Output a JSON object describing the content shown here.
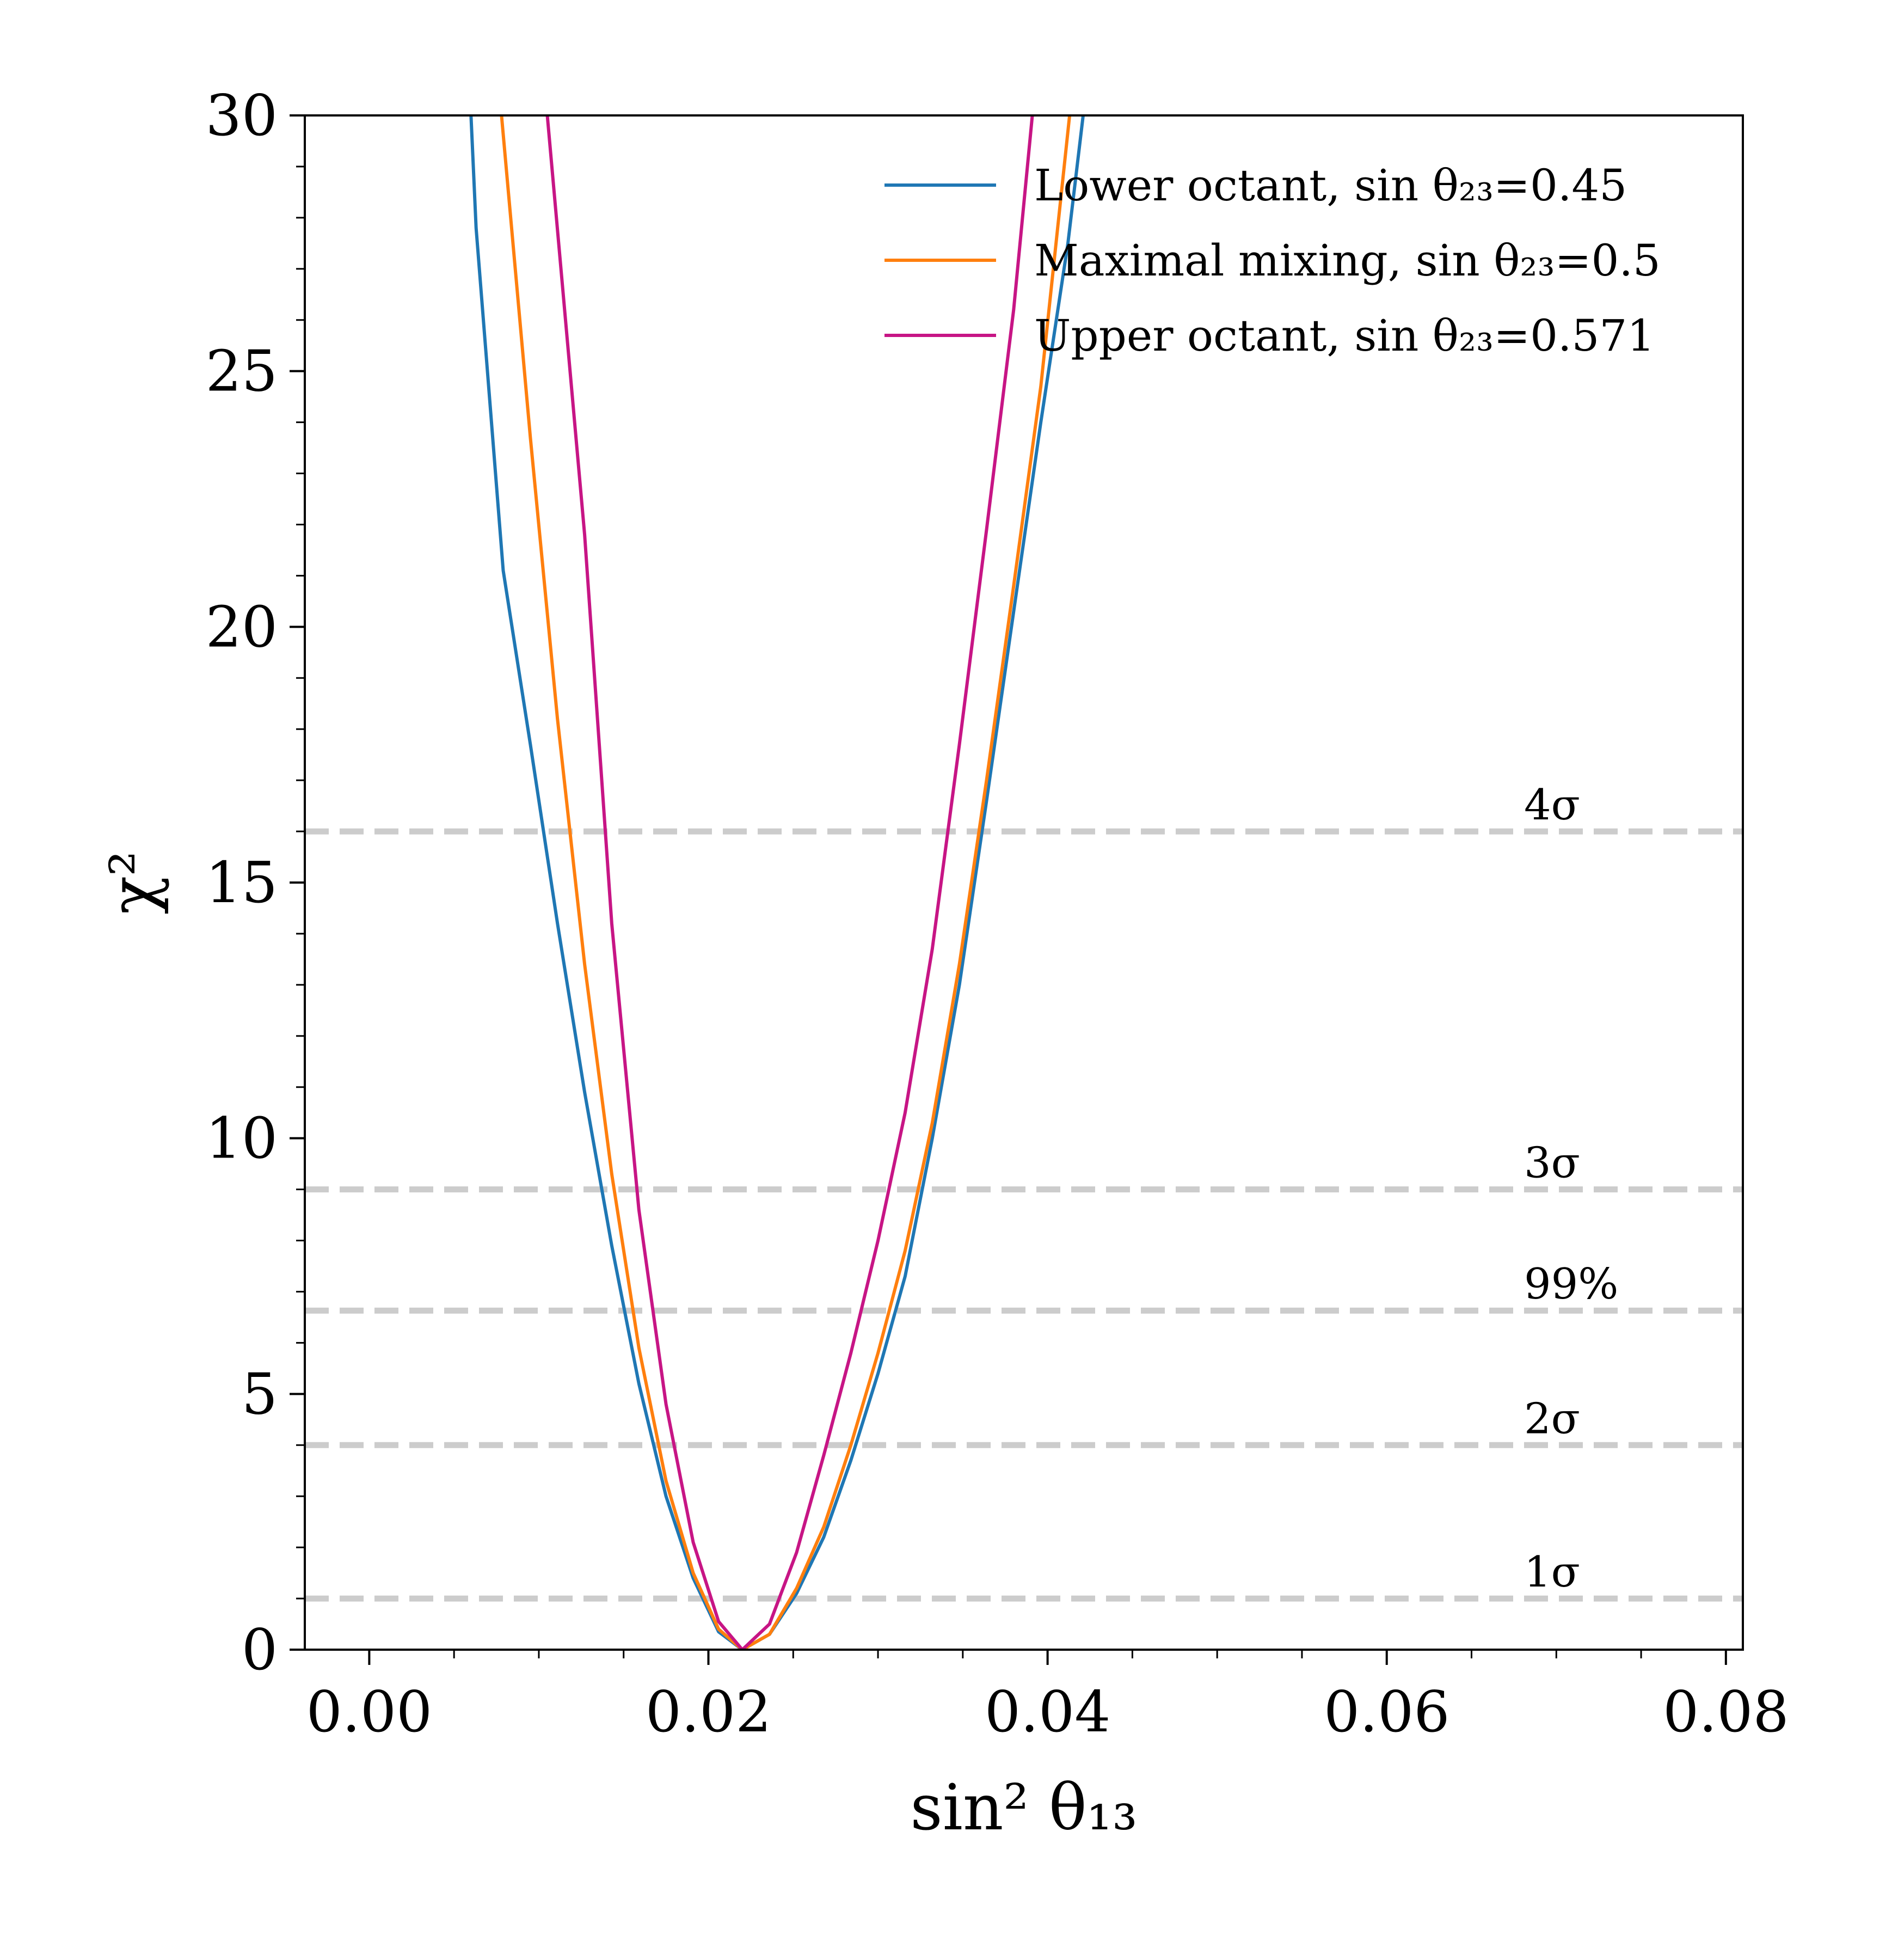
{
  "chart_data": {
    "type": "line",
    "title": "",
    "xlabel": "sin² θ₁₃",
    "ylabel": "χ²",
    "xlim": [
      -0.0038,
      0.081
    ],
    "ylim": [
      0,
      30
    ],
    "x_ticks": [
      0.0,
      0.02,
      0.04,
      0.06,
      0.08
    ],
    "x_tick_labels": [
      "0.00",
      "0.02",
      "0.04",
      "0.06",
      "0.08"
    ],
    "y_ticks": [
      0,
      5,
      10,
      15,
      20,
      25,
      30
    ],
    "y_tick_labels": [
      "0",
      "5",
      "10",
      "15",
      "20",
      "25",
      "30"
    ],
    "grid": false,
    "legend_position": "top-right",
    "series": [
      {
        "name": "Lower octant, sin θ₂₃=0.45",
        "color": "#1f77b4",
        "x": [
          0.006,
          0.0063,
          0.0079,
          0.0095,
          0.0111,
          0.0127,
          0.0143,
          0.0159,
          0.0175,
          0.0191,
          0.0206,
          0.022,
          0.0236,
          0.0252,
          0.0268,
          0.0284,
          0.03,
          0.0316,
          0.0332,
          0.0348,
          0.0364,
          0.038,
          0.0396,
          0.0412,
          0.0421
        ],
        "y": [
          30,
          27.8,
          21.1,
          17.7,
          14.2,
          10.9,
          7.9,
          5.2,
          3.0,
          1.4,
          0.35,
          0.0,
          0.3,
          1.1,
          2.2,
          3.7,
          5.4,
          7.3,
          10.0,
          13.0,
          16.6,
          20.3,
          24.0,
          27.5,
          30
        ]
      },
      {
        "name": "Maximal mixing, sin θ₂₃=0.5",
        "color": "#ff7f0e",
        "x": [
          0.0078,
          0.0095,
          0.0111,
          0.0127,
          0.0143,
          0.0159,
          0.0175,
          0.0191,
          0.0206,
          0.022,
          0.0236,
          0.0252,
          0.0268,
          0.0284,
          0.03,
          0.0316,
          0.0332,
          0.0348,
          0.0364,
          0.038,
          0.0396,
          0.0413
        ],
        "y": [
          30,
          23.7,
          18.2,
          13.4,
          9.3,
          5.9,
          3.3,
          1.5,
          0.4,
          0.0,
          0.3,
          1.2,
          2.4,
          4.0,
          5.8,
          7.8,
          10.3,
          13.4,
          17.0,
          20.8,
          24.7,
          30
        ]
      },
      {
        "name": "Upper octant, sin θ₂₃=0.571",
        "color": "#c71585",
        "x": [
          0.0105,
          0.0127,
          0.0143,
          0.0159,
          0.0175,
          0.0191,
          0.0206,
          0.022,
          0.0236,
          0.0252,
          0.0268,
          0.0284,
          0.03,
          0.0316,
          0.0332,
          0.0348,
          0.0364,
          0.038,
          0.0391
        ],
        "y": [
          30,
          21.8,
          14.2,
          8.6,
          4.8,
          2.1,
          0.55,
          0.0,
          0.5,
          1.9,
          3.8,
          5.8,
          8.0,
          10.5,
          13.7,
          17.7,
          21.9,
          26.2,
          30
        ]
      }
    ],
    "reference_lines": [
      {
        "label": "4σ",
        "y": 16
      },
      {
        "label": "3σ",
        "y": 9
      },
      {
        "label": "99%",
        "y": 6.63
      },
      {
        "label": "2σ",
        "y": 4
      },
      {
        "label": "1σ",
        "y": 1
      }
    ],
    "reference_line_color": "#cccccc"
  }
}
